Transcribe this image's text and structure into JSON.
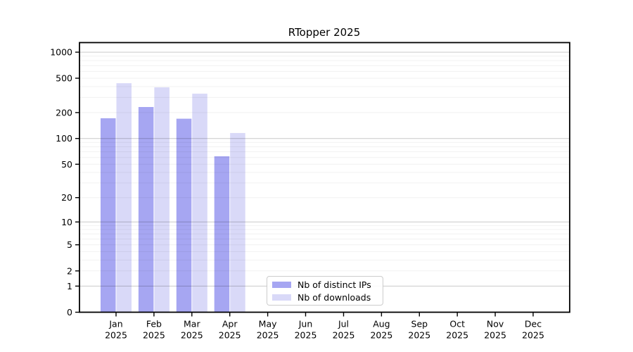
{
  "title": "RTopper 2025",
  "chart_data": {
    "type": "bar",
    "title": "RTopper 2025",
    "y_scale": "log10(1+x)",
    "ylim": [
      0,
      1290
    ],
    "y_ticks": [
      0,
      1,
      2,
      5,
      10,
      20,
      50,
      100,
      200,
      500,
      1000
    ],
    "categories": [
      "Jan",
      "Feb",
      "Mar",
      "Apr",
      "May",
      "Jun",
      "Jul",
      "Aug",
      "Sep",
      "Oct",
      "Nov",
      "Dec"
    ],
    "x_tick_second_line": "2025",
    "series": [
      {
        "name": "Nb of distinct IPs",
        "color": "#a6a6f2",
        "values": [
          172,
          232,
          170,
          62,
          null,
          null,
          null,
          null,
          null,
          null,
          null,
          null
        ]
      },
      {
        "name": "Nb of downloads",
        "color": "#d9d9f8",
        "values": [
          438,
          392,
          331,
          116,
          null,
          null,
          null,
          null,
          null,
          null,
          null,
          null
        ]
      }
    ],
    "grid": "horizontal: faint log minors, gray decade majors at 1/10/100/1000",
    "legend_position": "bottom-center"
  }
}
